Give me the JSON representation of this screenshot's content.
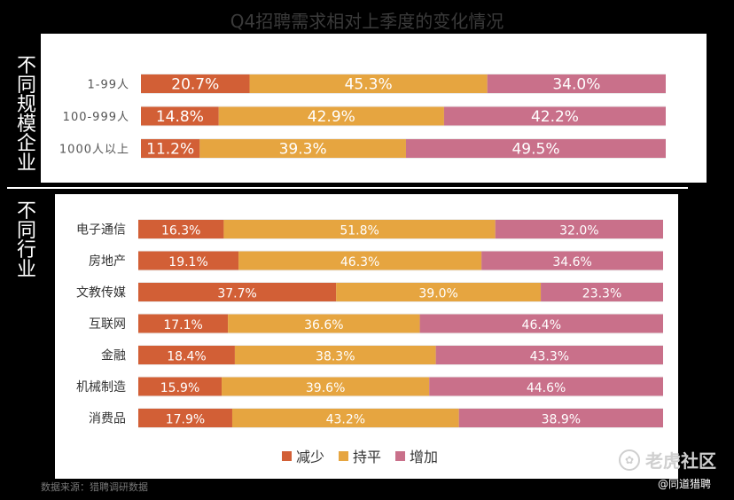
{
  "title": "Q4招聘需求相对上季度的变化情况",
  "section_labels": {
    "size": "不同规模企业",
    "industry": "不同行业"
  },
  "legend": [
    {
      "name": "减少",
      "color": "#d25f36"
    },
    {
      "name": "持平",
      "color": "#e6a540"
    },
    {
      "name": "增加",
      "color": "#c9708a"
    }
  ],
  "source": "数据来源：猎聘调研数据",
  "watermark": "老虎社区",
  "handle": "@同道猎聘",
  "chart_data": [
    {
      "type": "bar",
      "stacked": true,
      "orientation": "horizontal",
      "percent": true,
      "categories": [
        "1-99人",
        "100-999人",
        "1000人以上"
      ],
      "series": [
        {
          "name": "减少",
          "values": [
            20.7,
            14.8,
            11.2
          ]
        },
        {
          "name": "持平",
          "values": [
            45.3,
            42.9,
            39.3
          ]
        },
        {
          "name": "增加",
          "values": [
            34.0,
            42.2,
            49.5
          ]
        }
      ],
      "labels": [
        [
          "20.7%",
          "45.3%",
          "34.0%"
        ],
        [
          "14.8%",
          "42.9%",
          "42.2%"
        ],
        [
          "11.2%",
          "39.3%",
          "49.5%"
        ]
      ]
    },
    {
      "type": "bar",
      "stacked": true,
      "orientation": "horizontal",
      "percent": true,
      "categories": [
        "电子通信",
        "房地产",
        "文教传媒",
        "互联网",
        "金融",
        "机械制造",
        "消费品"
      ],
      "series": [
        {
          "name": "减少",
          "values": [
            16.3,
            19.1,
            37.7,
            17.1,
            18.4,
            15.9,
            17.9
          ]
        },
        {
          "name": "持平",
          "values": [
            51.8,
            46.3,
            39.0,
            36.6,
            38.3,
            39.6,
            43.2
          ]
        },
        {
          "name": "增加",
          "values": [
            32.0,
            34.6,
            23.3,
            46.4,
            43.3,
            44.6,
            38.9
          ]
        }
      ],
      "labels": [
        [
          "16.3%",
          "51.8%",
          "32.0%"
        ],
        [
          "19.1%",
          "46.3%",
          "34.6%"
        ],
        [
          "37.7%",
          "39.0%",
          "23.3%"
        ],
        [
          "17.1%",
          "36.6%",
          "46.4%"
        ],
        [
          "18.4%",
          "38.3%",
          "43.3%"
        ],
        [
          "15.9%",
          "39.6%",
          "44.6%"
        ],
        [
          "17.9%",
          "43.2%",
          "38.9%"
        ]
      ]
    }
  ]
}
